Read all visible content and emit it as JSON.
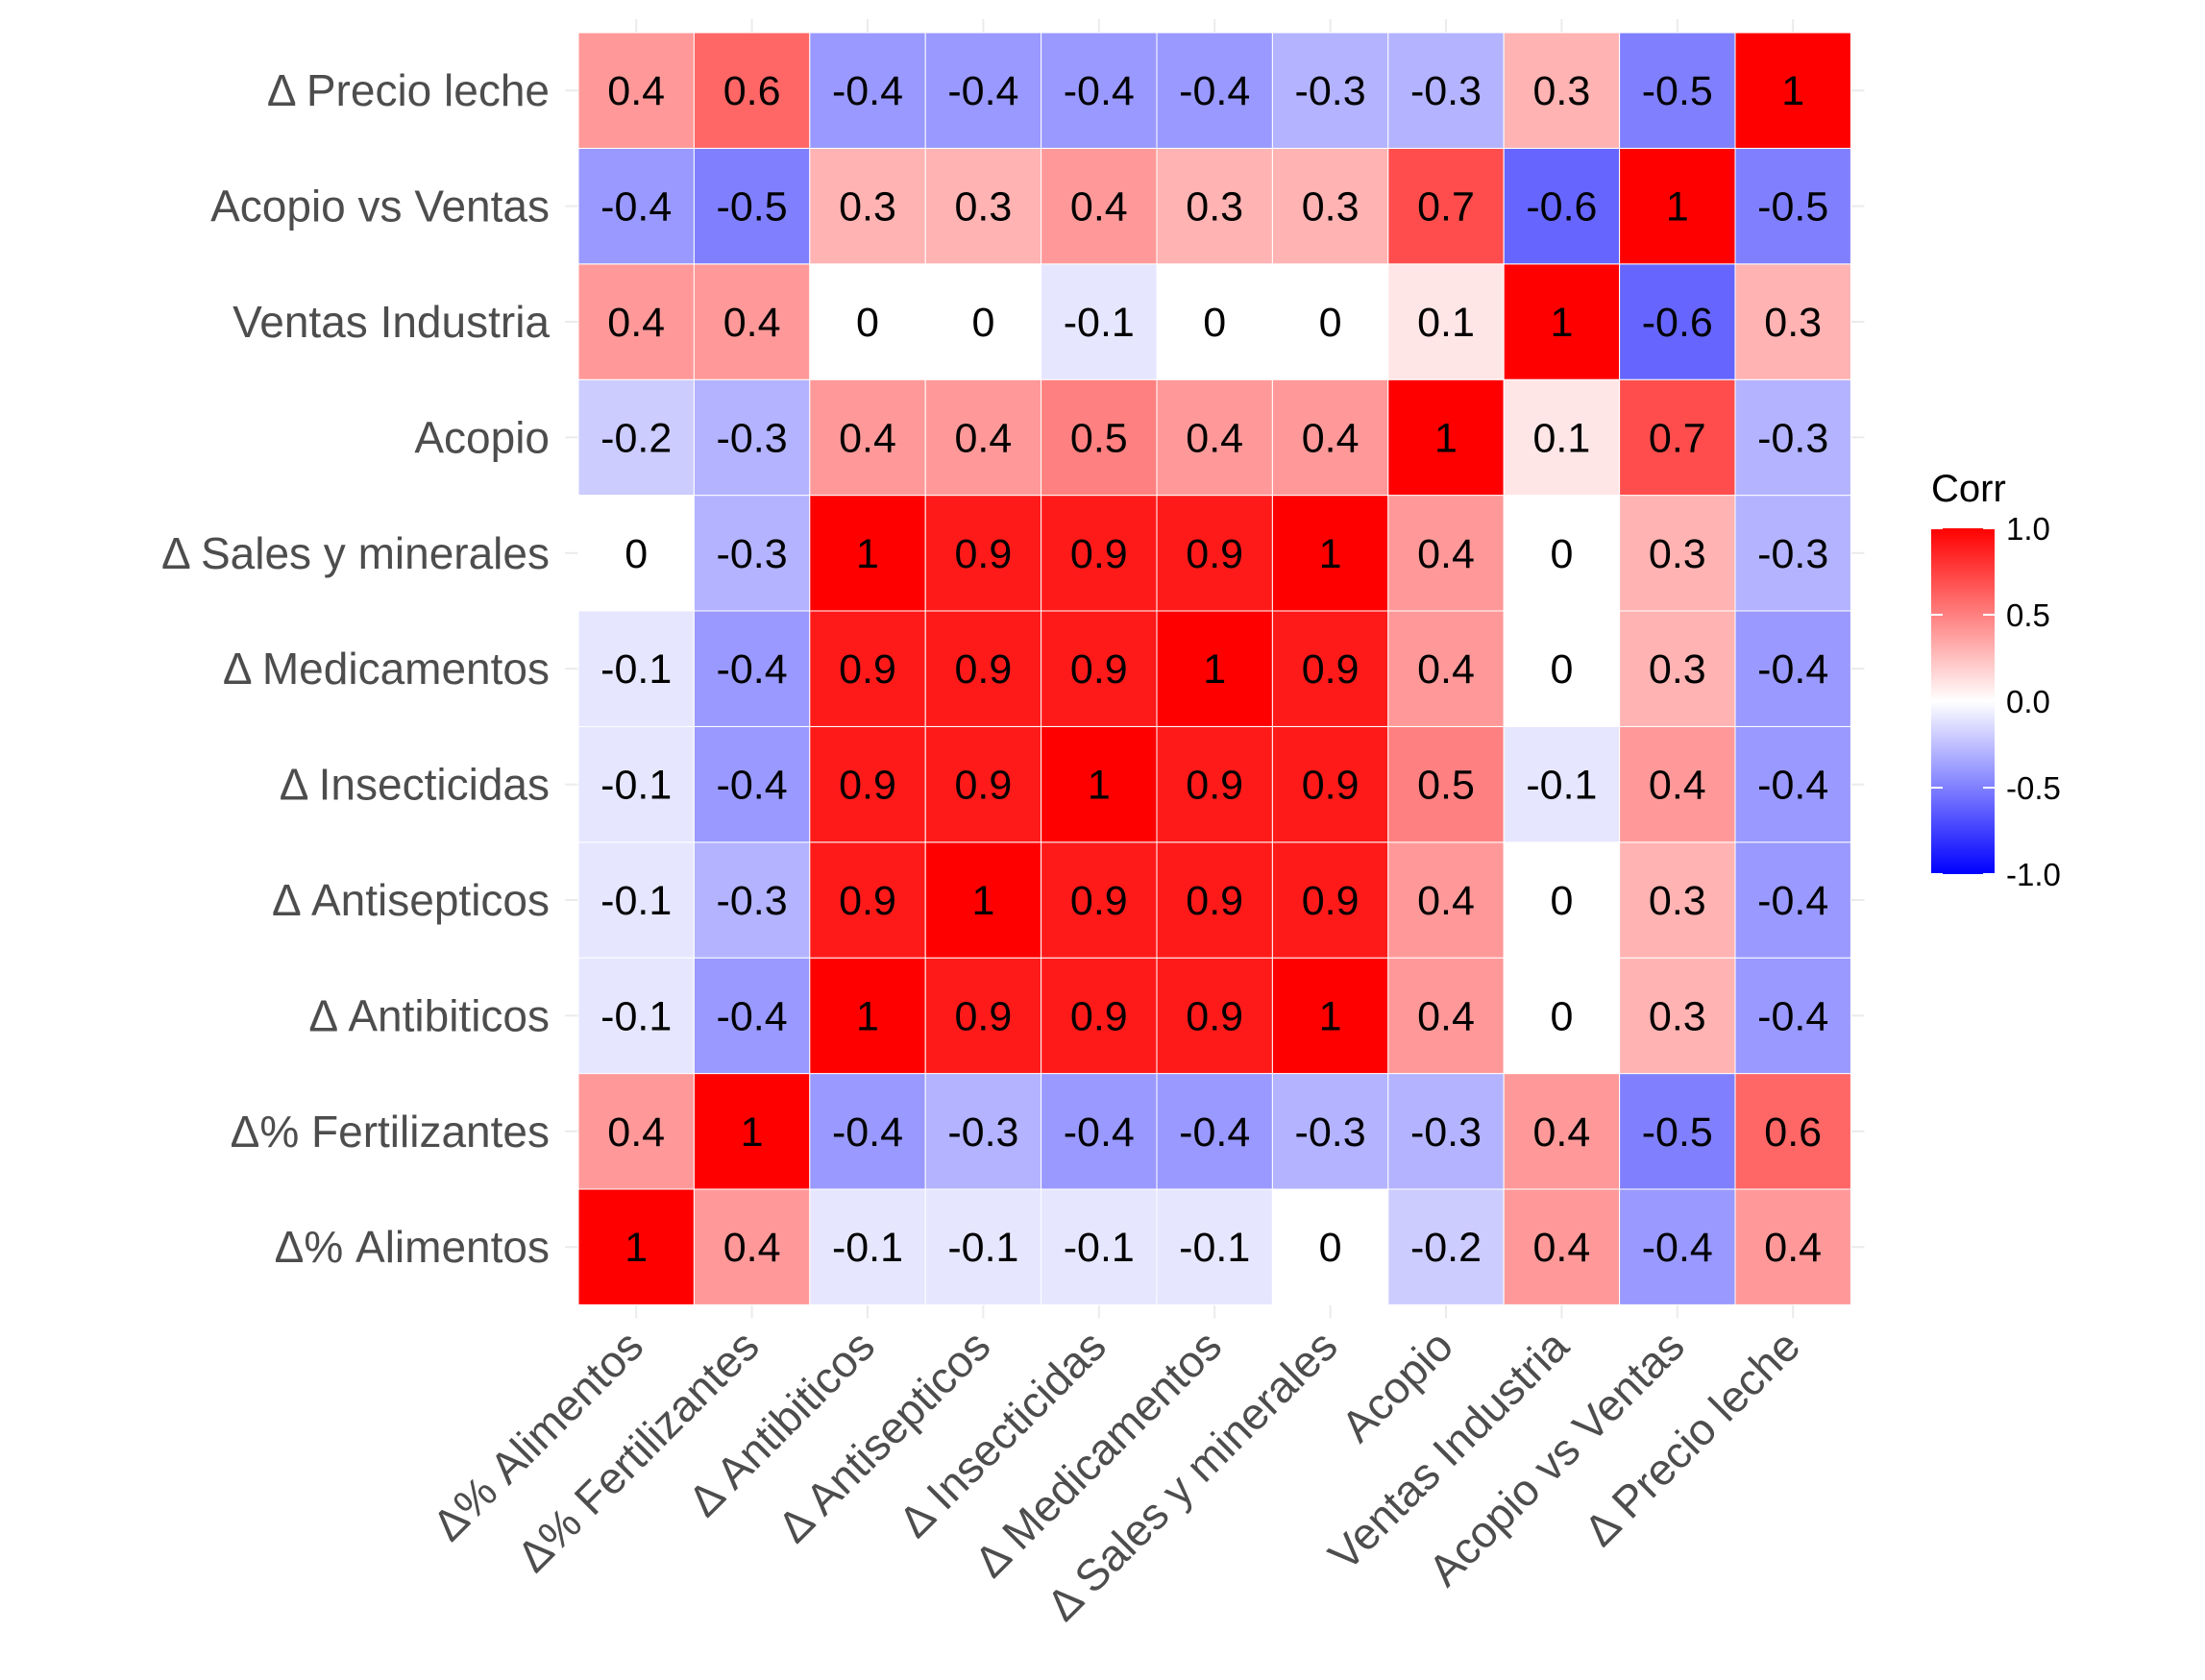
{
  "chart_data": {
    "type": "heatmap",
    "variables": [
      "Δ% Alimentos",
      "Δ% Fertilizantes",
      "Δ Antibiticos",
      "Δ Antisepticos",
      "Δ Insecticidas",
      "Δ Medicamentos",
      "Δ Sales y minerales",
      "Acopio",
      "Ventas Industria",
      "Acopio vs Ventas",
      "Δ Precio leche"
    ],
    "matrix": [
      [
        1,
        0.4,
        -0.1,
        -0.1,
        -0.1,
        -0.1,
        0,
        -0.2,
        0.4,
        -0.4,
        0.4
      ],
      [
        0.4,
        1,
        -0.4,
        -0.3,
        -0.4,
        -0.4,
        -0.3,
        -0.3,
        0.4,
        -0.5,
        0.6
      ],
      [
        -0.1,
        -0.4,
        1,
        0.9,
        0.9,
        0.9,
        1,
        0.4,
        0,
        0.3,
        -0.4
      ],
      [
        -0.1,
        -0.3,
        0.9,
        1,
        0.9,
        0.9,
        0.9,
        0.4,
        0,
        0.3,
        -0.4
      ],
      [
        -0.1,
        -0.4,
        0.9,
        0.9,
        1,
        0.9,
        0.9,
        0.5,
        -0.1,
        0.4,
        -0.4
      ],
      [
        -0.1,
        -0.4,
        0.9,
        0.9,
        0.9,
        1,
        0.9,
        0.4,
        0,
        0.3,
        -0.4
      ],
      [
        0,
        -0.3,
        1,
        0.9,
        0.9,
        0.9,
        1,
        0.4,
        0,
        0.3,
        -0.3
      ],
      [
        -0.2,
        -0.3,
        0.4,
        0.4,
        0.5,
        0.4,
        0.4,
        1,
        0.1,
        0.7,
        -0.3
      ],
      [
        0.4,
        0.4,
        0,
        0,
        -0.1,
        0,
        0,
        0.1,
        1,
        -0.6,
        0.3
      ],
      [
        -0.4,
        -0.5,
        0.3,
        0.3,
        0.4,
        0.3,
        0.3,
        0.7,
        -0.6,
        1,
        -0.5
      ],
      [
        0.4,
        0.6,
        -0.4,
        -0.4,
        -0.4,
        -0.4,
        -0.3,
        -0.3,
        0.3,
        -0.5,
        1
      ]
    ],
    "color_scale": {
      "low": "#0000ff",
      "mid": "#ffffff",
      "high": "#ff0000",
      "limits": [
        -1,
        1
      ]
    },
    "legend": {
      "title": "Corr",
      "ticks": [
        "1.0",
        "0.5",
        "0.0",
        "-0.5",
        "-1.0"
      ],
      "tick_values": [
        1,
        0.5,
        0,
        -0.5,
        -1
      ],
      "placement": "right"
    }
  }
}
